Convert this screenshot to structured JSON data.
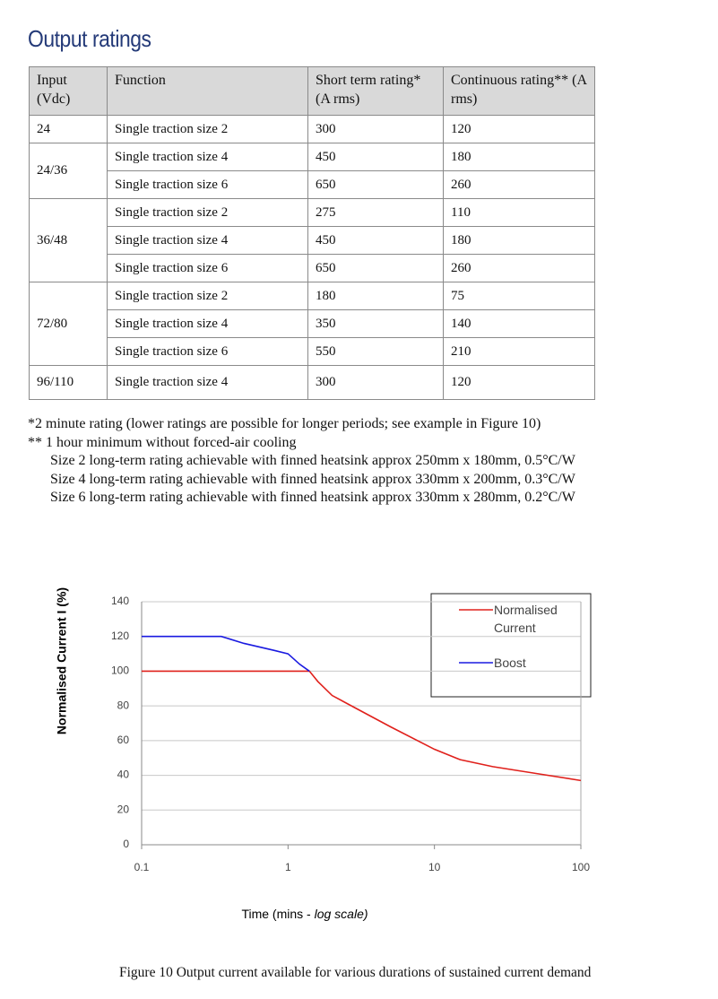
{
  "heading": "Output ratings",
  "table": {
    "header": [
      "Input (Vdc)",
      "Function",
      "Short term rating* (A rms)",
      "Continuous rating** (A rms)"
    ],
    "groups": [
      {
        "input": "24",
        "rows": [
          [
            "Single traction size 2",
            "300",
            "120"
          ]
        ]
      },
      {
        "input": "24/36",
        "rows": [
          [
            "Single traction size 4",
            "450",
            "180"
          ],
          [
            "Single traction size 6",
            "650",
            "260"
          ]
        ]
      },
      {
        "input": "36/48",
        "rows": [
          [
            "Single traction size 2",
            "275",
            "110"
          ],
          [
            "Single traction size 4",
            "450",
            "180"
          ],
          [
            "Single traction size 6",
            "650",
            "260"
          ]
        ]
      },
      {
        "input": "72/80",
        "rows": [
          [
            "Single traction size 2",
            "180",
            "75"
          ],
          [
            "Single traction size 4",
            "350",
            "140"
          ],
          [
            "Single traction size 6",
            "550",
            "210"
          ]
        ]
      },
      {
        "input": "96/110",
        "rows": [
          [
            "Single traction size 4",
            "300",
            "120"
          ]
        ]
      }
    ]
  },
  "notes": [
    "*2 minute rating (lower ratings are possible for longer periods; see example in Figure 10)",
    "** 1 hour minimum without forced-air cooling",
    "Size 2 long-term rating achievable with finned heatsink approx 250mm x 180mm, 0.5°C/W",
    "Size 4 long-term rating achievable with finned heatsink approx 330mm x 200mm, 0.3°C/W",
    "Size 6 long-term rating achievable with finned heatsink approx 330mm x 280mm, 0.2°C/W"
  ],
  "chart_data": {
    "type": "line",
    "y_label": "Normalised Current I (%)",
    "x_label": [
      "Time (mins - ",
      "log scale)"
    ],
    "x_log": true,
    "xlim": [
      0.1,
      100
    ],
    "xticks": [
      0.1,
      1,
      10,
      100
    ],
    "ylim": [
      0,
      140
    ],
    "yticks": [
      0,
      20,
      40,
      60,
      80,
      100,
      120,
      140
    ],
    "grid": true,
    "legend": "upper right",
    "series": [
      {
        "name": "Normalised Current",
        "color": "#e0201b",
        "x": [
          0.1,
          1.4,
          1.6,
          2,
          3,
          5,
          10,
          15,
          25,
          50,
          100
        ],
        "values": [
          100,
          100,
          94,
          86,
          78,
          68,
          55,
          49,
          45,
          41,
          37
        ]
      },
      {
        "name": "Boost",
        "color": "#1a1ae0",
        "x": [
          0.1,
          0.35,
          0.5,
          0.8,
          1.0,
          1.2,
          1.4
        ],
        "values": [
          120,
          120,
          116,
          112,
          110,
          104,
          100
        ]
      }
    ]
  },
  "caption": "Figure 10  Output current available for various durations of sustained current demand"
}
